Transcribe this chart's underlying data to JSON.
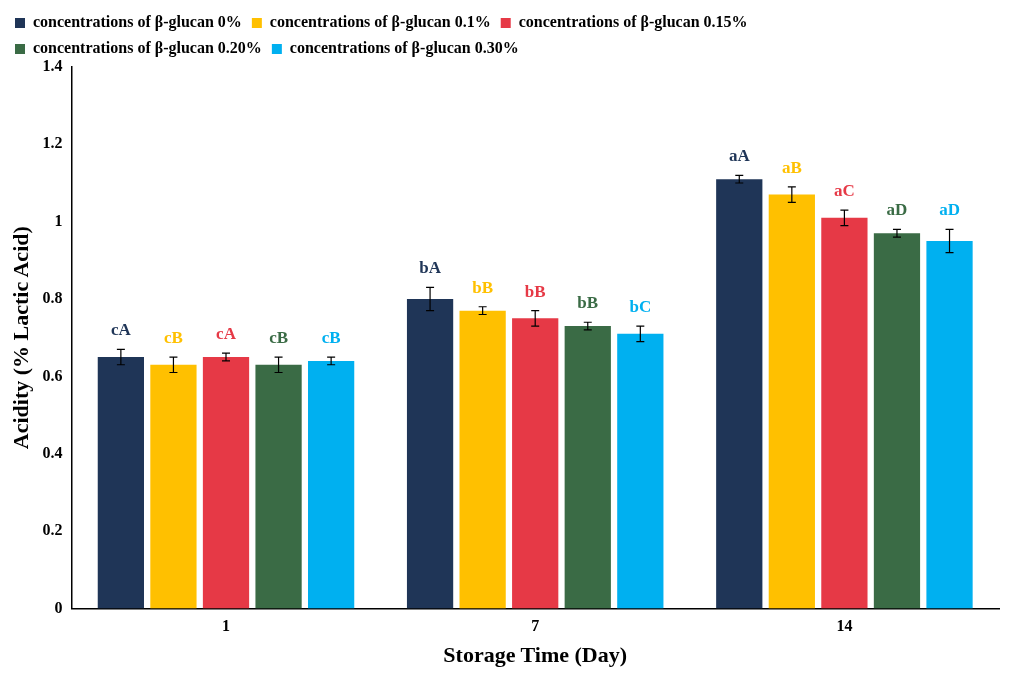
{
  "chart_data": {
    "type": "bar",
    "xlabel": "Storage Time (Day)",
    "ylabel": "Acidity (% Lactic Acid)",
    "categories": [
      "1",
      "7",
      "14"
    ],
    "series": [
      {
        "name": "concentrations of β-glucan 0%",
        "color": "#1f3557",
        "values": [
          0.65,
          0.8,
          1.11
        ],
        "errors": [
          0.02,
          0.03,
          0.01
        ],
        "value_labels": [
          "cA",
          "bA",
          "aA"
        ]
      },
      {
        "name": "concentrations of β-glucan 0.1%",
        "color": "#ffc000",
        "values": [
          0.63,
          0.77,
          1.07
        ],
        "errors": [
          0.02,
          0.01,
          0.02
        ],
        "value_labels": [
          "cB",
          "bB",
          "aB"
        ]
      },
      {
        "name": "concentrations of β-glucan 0.15%",
        "color": "#e63946",
        "values": [
          0.65,
          0.75,
          1.01
        ],
        "errors": [
          0.01,
          0.02,
          0.02
        ],
        "value_labels": [
          "cA",
          "bB",
          "aC"
        ]
      },
      {
        "name": "concentrations of β-glucan 0.20%",
        "color": "#3a6b45",
        "values": [
          0.63,
          0.73,
          0.97
        ],
        "errors": [
          0.02,
          0.01,
          0.01
        ],
        "value_labels": [
          "cB",
          "bB",
          "aD"
        ]
      },
      {
        "name": "concentrations of β-glucan 0.30%",
        "color": "#00b0f0",
        "values": [
          0.64,
          0.71,
          0.95
        ],
        "errors": [
          0.01,
          0.02,
          0.03
        ],
        "value_labels": [
          "cB",
          "bC",
          "aD"
        ]
      }
    ],
    "ylim": [
      0,
      1.4
    ],
    "yticks": [
      0,
      0.2,
      0.4,
      0.6,
      0.8,
      1,
      1.2,
      1.4
    ],
    "grid": false,
    "legend": "top"
  }
}
